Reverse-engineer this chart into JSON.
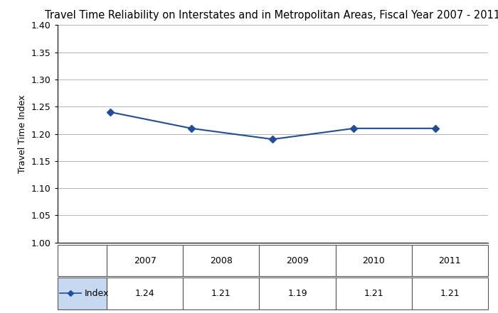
{
  "title": "Travel Time Reliability on Interstates and in Metropolitan Areas, Fiscal Year 2007 - 2011",
  "years": [
    2007,
    2008,
    2009,
    2010,
    2011
  ],
  "values": [
    1.24,
    1.21,
    1.19,
    1.21,
    1.21
  ],
  "ylabel": "Travel Time Index",
  "ylim": [
    1.0,
    1.4
  ],
  "yticks": [
    1.0,
    1.05,
    1.1,
    1.15,
    1.2,
    1.25,
    1.3,
    1.35,
    1.4
  ],
  "line_color": "#1F4E9C",
  "marker": "D",
  "marker_size": 5,
  "legend_label": "Index",
  "bg_color": "#ffffff",
  "title_fontsize": 10.5,
  "axis_label_fontsize": 9,
  "tick_fontsize": 9,
  "table_fontsize": 9,
  "legend_cell_bg": "#C5D9F1",
  "grid_color": "#AAAAAA",
  "border_color": "#000000"
}
